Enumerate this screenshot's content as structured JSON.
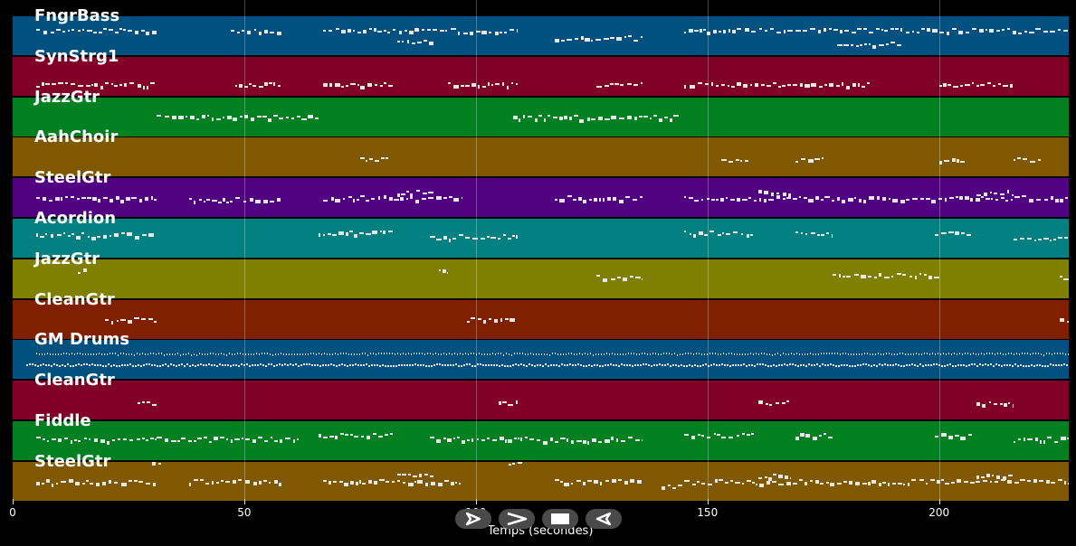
{
  "chart_data": {
    "type": "piano-roll",
    "xlabel": "Temps (secondes)",
    "xlim": [
      0,
      228
    ],
    "xticks": [
      0,
      50,
      100,
      150,
      200
    ],
    "tracks": [
      {
        "name": "FngrBass",
        "color": "#005080"
      },
      {
        "name": "SynStrg1",
        "color": "#800028"
      },
      {
        "name": "JazzGtr",
        "color": "#008020"
      },
      {
        "name": "AahChoir",
        "color": "#805800"
      },
      {
        "name": "SteelGtr",
        "color": "#500080"
      },
      {
        "name": "Acordion",
        "color": "#008080"
      },
      {
        "name": "JazzGtr",
        "color": "#808000"
      },
      {
        "name": "CleanGtr",
        "color": "#802000"
      },
      {
        "name": "GM Drums",
        "color": "#005080"
      },
      {
        "name": "CleanGtr",
        "color": "#800028"
      },
      {
        "name": "Fiddle",
        "color": "#008020"
      },
      {
        "name": "SteelGtr",
        "color": "#805800"
      }
    ],
    "note_sections": [
      [
        [
          5,
          31,
          0.35
        ],
        [
          47,
          58,
          0.35
        ],
        [
          67,
          109,
          0.35
        ],
        [
          83,
          91,
          0.65
        ],
        [
          117,
          136,
          0.55
        ],
        [
          145,
          228,
          0.35
        ],
        [
          178,
          192,
          0.7
        ]
      ],
      [
        [
          5,
          31,
          0.7
        ],
        [
          48,
          58,
          0.7
        ],
        [
          67,
          82,
          0.7
        ],
        [
          94,
          109,
          0.7
        ],
        [
          126,
          136,
          0.7
        ],
        [
          145,
          185,
          0.7
        ],
        [
          200,
          216,
          0.7
        ]
      ],
      [
        [
          31,
          66,
          0.5
        ],
        [
          108,
          144,
          0.5
        ]
      ],
      [
        [
          75,
          81,
          0.55
        ],
        [
          153,
          159,
          0.55
        ],
        [
          169,
          175,
          0.55
        ],
        [
          200,
          206,
          0.55
        ],
        [
          216,
          222,
          0.55
        ]
      ],
      [
        [
          5,
          31,
          0.5
        ],
        [
          38,
          58,
          0.55
        ],
        [
          67,
          97,
          0.5
        ],
        [
          83,
          91,
          0.35
        ],
        [
          117,
          136,
          0.5
        ],
        [
          145,
          228,
          0.5
        ],
        [
          161,
          168,
          0.35
        ],
        [
          208,
          216,
          0.35
        ]
      ],
      [
        [
          5,
          31,
          0.4
        ],
        [
          66,
          82,
          0.35
        ],
        [
          90,
          109,
          0.45
        ],
        [
          145,
          160,
          0.35
        ],
        [
          169,
          177,
          0.35
        ],
        [
          199,
          207,
          0.35
        ],
        [
          216,
          228,
          0.5
        ]
      ],
      [
        [
          14,
          16,
          0.3
        ],
        [
          92,
          94,
          0.3
        ],
        [
          126,
          136,
          0.45
        ],
        [
          177,
          200,
          0.4
        ],
        [
          226,
          228,
          0.45
        ]
      ],
      [
        [
          20,
          31,
          0.5
        ],
        [
          98,
          109,
          0.5
        ],
        [
          226,
          228,
          0.5
        ]
      ],
      [
        [
          5,
          228,
          0.33
        ],
        [
          3,
          228,
          0.62
        ]
      ],
      [
        [
          27,
          31,
          0.55
        ],
        [
          105,
          109,
          0.55
        ],
        [
          161,
          168,
          0.55
        ],
        [
          208,
          216,
          0.55
        ]
      ],
      [
        [
          5,
          31,
          0.45
        ],
        [
          31,
          62,
          0.45
        ],
        [
          66,
          82,
          0.35
        ],
        [
          90,
          109,
          0.45
        ],
        [
          109,
          136,
          0.45
        ],
        [
          145,
          160,
          0.35
        ],
        [
          169,
          177,
          0.35
        ],
        [
          199,
          207,
          0.35
        ],
        [
          216,
          228,
          0.45
        ]
      ],
      [
        [
          5,
          31,
          0.5
        ],
        [
          30,
          32,
          0.05
        ],
        [
          38,
          58,
          0.5
        ],
        [
          67,
          97,
          0.5
        ],
        [
          83,
          91,
          0.35
        ],
        [
          107,
          110,
          0.05
        ],
        [
          117,
          136,
          0.5
        ],
        [
          140,
          145,
          0.6
        ],
        [
          145,
          228,
          0.5
        ],
        [
          161,
          168,
          0.35
        ],
        [
          208,
          216,
          0.35
        ]
      ]
    ]
  },
  "controls": [
    {
      "name": "play-forward-button",
      "icon": "play-outline-icon"
    },
    {
      "name": "fast-forward-button",
      "icon": "chevron-right-icon"
    },
    {
      "name": "stop-button",
      "icon": "stop-icon"
    },
    {
      "name": "rewind-button",
      "icon": "play-reverse-outline-icon"
    }
  ]
}
